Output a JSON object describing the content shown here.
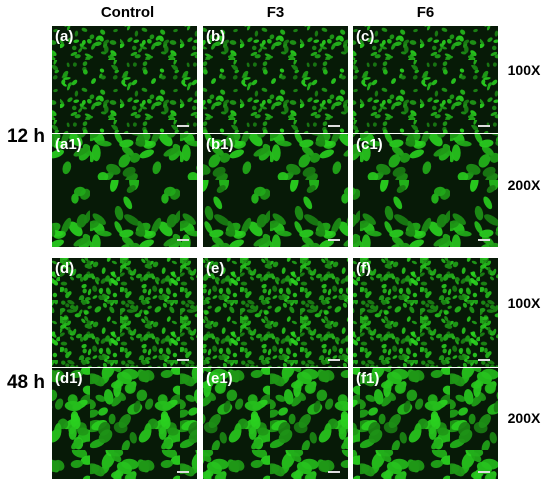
{
  "columns": [
    "Control",
    "F3",
    "F6"
  ],
  "rows": [
    {
      "label": "12 h",
      "magnifications": [
        "100X",
        "200X"
      ],
      "panels": [
        [
          "(a)",
          "(b)",
          "(c)"
        ],
        [
          "(a1)",
          "(b1)",
          "(c1)"
        ]
      ]
    },
    {
      "label": "48 h",
      "magnifications": [
        "100X",
        "200X"
      ],
      "panels": [
        [
          "(d)",
          "(e)",
          "(f)"
        ],
        [
          "(d1)",
          "(e1)",
          "(f1)"
        ]
      ]
    }
  ]
}
